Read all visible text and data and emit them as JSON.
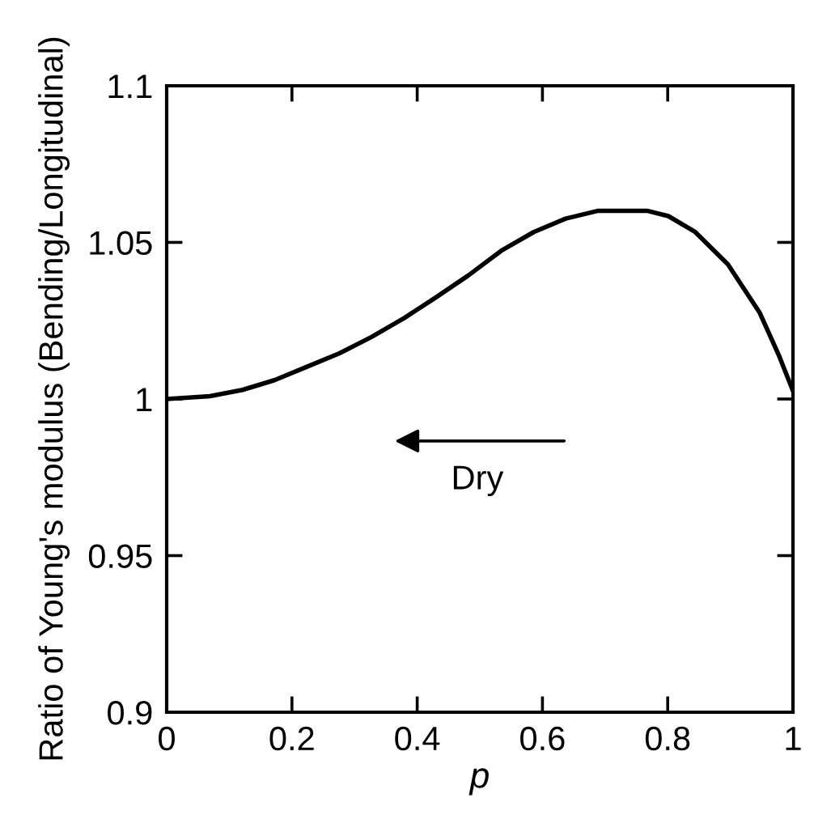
{
  "chart_data": {
    "type": "line",
    "xlabel": "p",
    "ylabel": "Ratio of Young's modulus (Bending/Longitudinal)",
    "x": [
      0,
      0.069,
      0.121,
      0.172,
      0.224,
      0.276,
      0.327,
      0.379,
      0.431,
      0.482,
      0.534,
      0.586,
      0.637,
      0.689,
      0.767,
      0.801,
      0.844,
      0.896,
      0.947,
      0.978,
      1.0
    ],
    "series": [
      {
        "color": "#000000",
        "values": [
          1.0,
          1.0009,
          1.0029,
          1.006,
          1.0103,
          1.0146,
          1.0198,
          1.0258,
          1.0326,
          1.0395,
          1.0473,
          1.0533,
          1.0576,
          1.0601,
          1.0601,
          1.0584,
          1.0533,
          1.043,
          1.0275,
          1.0137,
          1.0026
        ]
      }
    ],
    "xlim": [
      0,
      1
    ],
    "xticks": [
      0,
      0.2,
      0.4,
      0.6,
      0.8,
      1
    ],
    "ylim": [
      0.9,
      1.1
    ],
    "yticks": [
      0.9,
      0.95,
      1,
      1.05,
      1.1
    ],
    "annotations": [
      "Dry"
    ],
    "grid": false,
    "legend": false,
    "marker": "none",
    "line_style": "solid"
  }
}
